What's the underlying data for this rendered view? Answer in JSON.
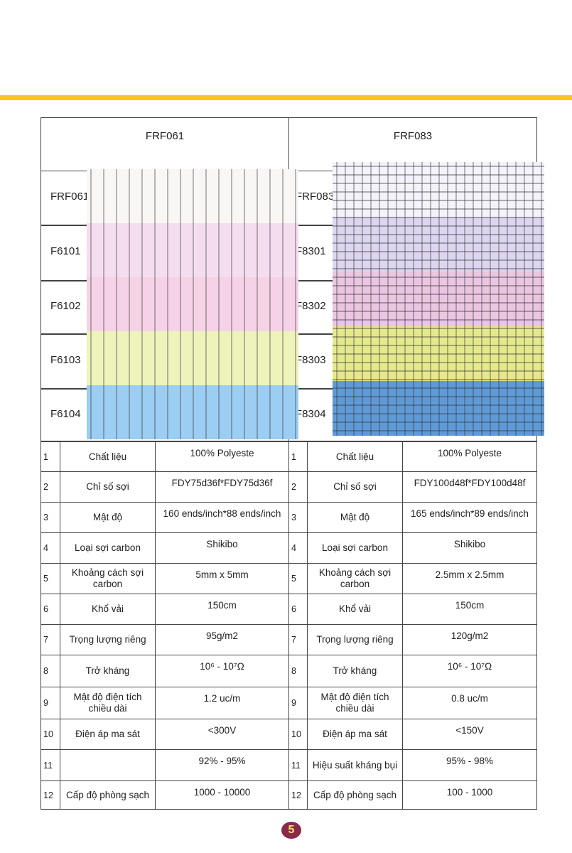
{
  "products": [
    {
      "name": "FRF061",
      "variants": [
        "FRF061",
        "F6101",
        "F6102",
        "F6103",
        "F6104"
      ],
      "specs": [
        {
          "no": 1,
          "label": "Chất liệu",
          "value": "100% Polyeste"
        },
        {
          "no": 2,
          "label": "Chỉ số sợi",
          "value": "FDY75d36f*FDY75d36f"
        },
        {
          "no": 3,
          "label": "Mật độ",
          "value": "160 ends/inch*88 ends/inch"
        },
        {
          "no": 4,
          "label": "Loại sợi carbon",
          "value": "Shikibo"
        },
        {
          "no": 5,
          "label": "Khoảng cách sợi carbon",
          "value": "5mm x 5mm"
        },
        {
          "no": 6,
          "label": "Khổ vải",
          "value": "150cm"
        },
        {
          "no": 7,
          "label": "Trọng lượng riêng",
          "value": "95g/m2"
        },
        {
          "no": 8,
          "label": "Trở kháng",
          "value": "10⁶ - 10⁷Ω"
        },
        {
          "no": 9,
          "label": "Mật độ điện tích chiều dài",
          "value": "1.2 uc/m"
        },
        {
          "no": 10,
          "label": "Điện áp ma sát",
          "value": "<300V"
        },
        {
          "no": 11,
          "label": null,
          "value": "92% - 95%"
        },
        {
          "no": 12,
          "label": "Cấp độ phòng sạch",
          "value": "1000 - 10000"
        }
      ]
    },
    {
      "name": "FRF083",
      "variants": [
        "FRF083",
        "F8301",
        "F8302",
        "F8303",
        "F8304"
      ],
      "specs": [
        {
          "no": 1,
          "label": "Chất liệu",
          "value": "100% Polyeste"
        },
        {
          "no": 2,
          "label": "Chỉ số sợi",
          "value": "FDY100d48f*FDY100d48f"
        },
        {
          "no": 3,
          "label": "Mật độ",
          "value": "165 ends/inch*89 ends/inch"
        },
        {
          "no": 4,
          "label": "Loại sợi carbon",
          "value": "Shikibo"
        },
        {
          "no": 5,
          "label": "Khoảng cách sợi carbon",
          "value": "2.5mm x 2.5mm"
        },
        {
          "no": 6,
          "label": "Khổ vải",
          "value": "150cm"
        },
        {
          "no": 7,
          "label": "Trọng lượng riêng",
          "value": "120g/m2"
        },
        {
          "no": 8,
          "label": "Trở kháng",
          "value": "10⁶ - 10⁷Ω"
        },
        {
          "no": 9,
          "label": "Mật độ điện tích chiều dài",
          "value": "0.8 uc/m"
        },
        {
          "no": 10,
          "label": "Điện áp ma sát",
          "value": "<150V"
        },
        {
          "no": 11,
          "label": "Hiệu suất kháng bụi",
          "value": "95% - 98%"
        },
        {
          "no": 12,
          "label": "Cấp độ phòng sạch",
          "value": "100 - 1000"
        }
      ]
    }
  ],
  "page_number": "5"
}
